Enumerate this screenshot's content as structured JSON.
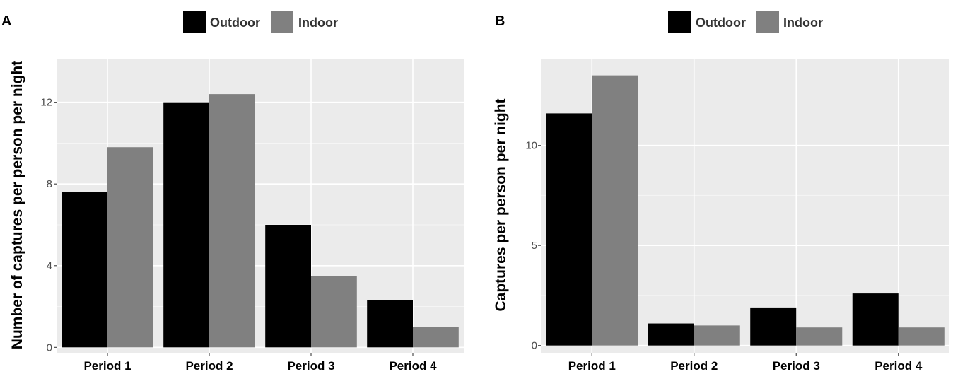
{
  "chart_data": [
    {
      "type": "bar",
      "panel": "A",
      "categories": [
        "Period 1",
        "Period 2",
        "Period 3",
        "Period 4"
      ],
      "series": [
        {
          "name": "Outdoor",
          "values": [
            7.6,
            12.0,
            6.0,
            2.3
          ],
          "color": "#000000"
        },
        {
          "name": "Indoor",
          "values": [
            9.8,
            12.4,
            3.5,
            1.0
          ],
          "color": "#808080"
        }
      ],
      "xlabel": "",
      "ylabel": "Number of captures per person per night",
      "ylim": [
        -0.3,
        14.1
      ],
      "yticks": [
        0,
        4,
        8,
        12
      ],
      "grid": true,
      "legend_position": "top"
    },
    {
      "type": "bar",
      "panel": "B",
      "categories": [
        "Period 1",
        "Period 2",
        "Period 3",
        "Period 4"
      ],
      "series": [
        {
          "name": "Outdoor",
          "values": [
            11.6,
            1.1,
            1.9,
            2.6
          ],
          "color": "#000000"
        },
        {
          "name": "Indoor",
          "values": [
            13.5,
            1.0,
            0.9,
            0.9
          ],
          "color": "#808080"
        }
      ],
      "xlabel": "",
      "ylabel": "Captures per person per night",
      "ylim": [
        -0.4,
        14.3
      ],
      "yticks": [
        0,
        5,
        10
      ],
      "grid": true,
      "legend_position": "top"
    }
  ]
}
